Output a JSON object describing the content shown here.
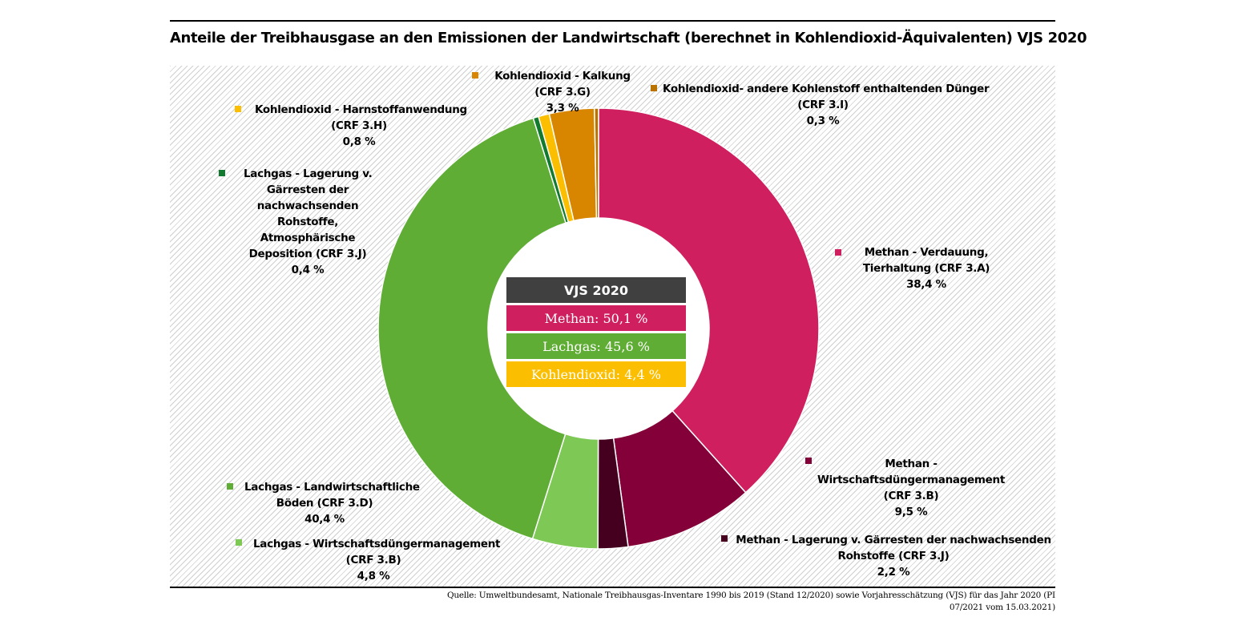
{
  "title": "Anteile der Treibhausgase an den Emissionen der Landwirtschaft (berechnet in Kohlendioxid-Äquivalenten) VJS 2020",
  "source": [
    "Quelle: Umweltbundesamt, Nationale Treibhausgas-Inventare 1990 bis 2019 (Stand 12/2020) sowie Vorjahresschätzung (VJS) für das Jahr 2020 (PI",
    "07/2021 vom 15.03.2021)"
  ],
  "chart_data": {
    "type": "pie",
    "variant": "donut",
    "slices": [
      {
        "key": "methan_verdauung",
        "lines": [
          "Methan - Verdauung,",
          "Tierhaltung (CRF 3.A)",
          "38,4 %"
        ],
        "value": 38.4,
        "color": "#cf1f5e"
      },
      {
        "key": "methan_wdm",
        "lines": [
          "Methan -",
          "Wirtschaftsdüngermanagement",
          "(CRF 3.B)",
          "9,5 %"
        ],
        "value": 9.5,
        "color": "#830038"
      },
      {
        "key": "methan_gaerreste",
        "lines": [
          "Methan - Lagerung v. Gärresten der nachwachsenden",
          "Rohstoffe (CRF 3.J)",
          "2,2 %"
        ],
        "value": 2.2,
        "color": "#45001f"
      },
      {
        "key": "lachgas_wdm",
        "lines": [
          "Lachgas - Wirtschaftsdüngermanagement",
          "(CRF 3.B)",
          "4,8 %"
        ],
        "value": 4.8,
        "color": "#7ec855"
      },
      {
        "key": "lachgas_boeden",
        "lines": [
          "Lachgas - Landwirtschaftliche",
          "Böden (CRF 3.D)",
          "40,4 %"
        ],
        "value": 40.4,
        "color": "#5fad35"
      },
      {
        "key": "lachgas_gaerreste",
        "lines": [
          "Lachgas - Lagerung v.",
          "Gärresten der",
          "nachwachsenden",
          "Rohstoffe,",
          "Atmosphärische",
          "Deposition (CRF 3.J)",
          "0,4 %"
        ],
        "value": 0.4,
        "color": "#127a2e"
      },
      {
        "key": "co2_harnstoff",
        "lines": [
          "Kohlendioxid - Harnstoffanwendung",
          "(CRF 3.H)",
          "0,8 %"
        ],
        "value": 0.8,
        "color": "#fbbe00"
      },
      {
        "key": "co2_kalkung",
        "lines": [
          "Kohlendioxid - Kalkung",
          "(CRF 3.G)",
          "3,3 %"
        ],
        "value": 3.3,
        "color": "#d88500"
      },
      {
        "key": "co2_andere",
        "lines": [
          "Kohlendioxid- andere Kohlenstoff enthaltenden Dünger",
          "(CRF 3.I)",
          "0,3 %"
        ],
        "value": 0.3,
        "color": "#b97300"
      }
    ],
    "summary": {
      "header": "VJS 2020",
      "header_color": "#404040",
      "rows": [
        {
          "text": "Methan:  50,1 %",
          "color": "#cf1f5e"
        },
        {
          "text": "Lachgas: 45,6 %",
          "color": "#5fad35"
        },
        {
          "text": "Kohlendioxid: 4,4 %",
          "color": "#fbbe00"
        }
      ]
    }
  }
}
